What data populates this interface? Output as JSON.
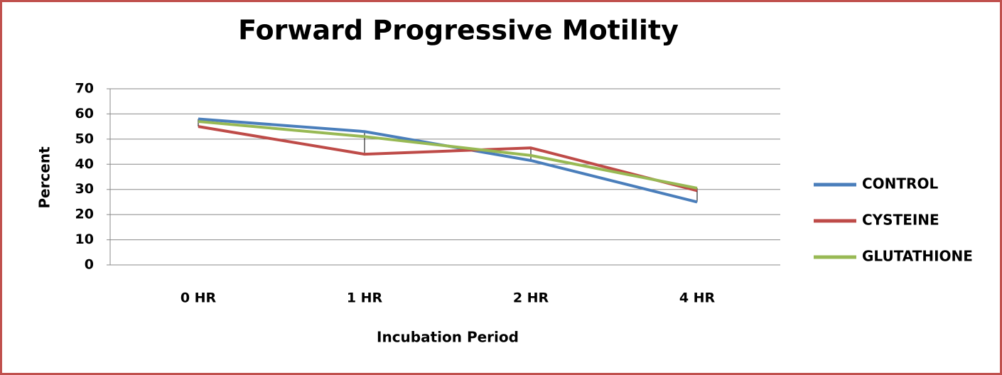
{
  "chart_data": {
    "type": "line",
    "title": "Forward Progressive Motility",
    "x_label": "Incubation Period",
    "y_label": "Percent",
    "categories": [
      "0 HR",
      "1 HR",
      "2 HR",
      "4 HR"
    ],
    "series": [
      {
        "name": "CONTROL",
        "color": "#4a7ebb",
        "values": [
          58,
          53,
          41.5,
          25
        ]
      },
      {
        "name": "CYSTEINE",
        "color": "#be4b48",
        "values": [
          55,
          44,
          46.5,
          29.5
        ]
      },
      {
        "name": "GLUTATHIONE",
        "color": "#98b954",
        "values": [
          57,
          51,
          43.5,
          30.5
        ]
      }
    ],
    "ylim": [
      0,
      70
    ],
    "yticks": [
      0,
      10,
      20,
      30,
      40,
      50,
      60,
      70
    ],
    "grid": true,
    "legend": "right",
    "high_low_lines": true
  }
}
